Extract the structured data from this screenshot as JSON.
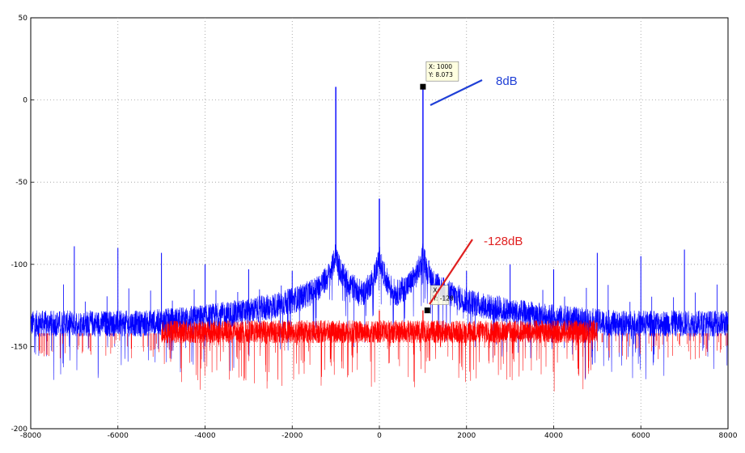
{
  "chart_data": {
    "type": "line",
    "title": "",
    "xlabel": "",
    "ylabel": "",
    "xlim": [
      -8000,
      8000
    ],
    "ylim": [
      -200,
      50
    ],
    "grid": true,
    "x_ticks": [
      "-8000",
      "-6000",
      "-4000",
      "-2000",
      "0",
      "2000",
      "4000",
      "6000",
      "8000"
    ],
    "y_ticks": [
      "50",
      "0",
      "-50",
      "-100",
      "-150",
      "-200"
    ],
    "series": [
      {
        "color": "#0000ff",
        "noise_floor_db": -138,
        "peaks": [
          {
            "x": -1000,
            "y": 8
          },
          {
            "x": 1000,
            "y": 8.073
          },
          {
            "x": 0,
            "y": -60
          }
        ],
        "spurs": [
          {
            "x": -7000,
            "y": -89
          },
          {
            "x": -6000,
            "y": -90
          },
          {
            "x": -5000,
            "y": -93
          },
          {
            "x": -4000,
            "y": -100
          },
          {
            "x": -3000,
            "y": -103
          },
          {
            "x": -2000,
            "y": -104
          },
          {
            "x": 2000,
            "y": -104
          },
          {
            "x": 3000,
            "y": -100
          },
          {
            "x": 4000,
            "y": -103
          },
          {
            "x": 5000,
            "y": -93
          },
          {
            "x": 6000,
            "y": -95
          },
          {
            "x": 7000,
            "y": -91
          }
        ]
      },
      {
        "color": "#ff0000",
        "noise_floor_db": -143,
        "x_range": [
          -5000,
          5000
        ],
        "peaks": [
          {
            "x": 0,
            "y": -128
          },
          {
            "x": 1000,
            "y": -128
          }
        ]
      }
    ],
    "datatips": [
      {
        "x_label": "X: 1000",
        "y_label": "Y: 8.073",
        "x": 1000,
        "y": 8.073
      },
      {
        "x_label": "X:",
        "y_label": "Y: -128",
        "x": 1100,
        "y": -128
      }
    ],
    "annotations": [
      {
        "text": "8dB",
        "color": "#1f3fd6"
      },
      {
        "text": "-128dB",
        "color": "#e02020"
      }
    ]
  }
}
